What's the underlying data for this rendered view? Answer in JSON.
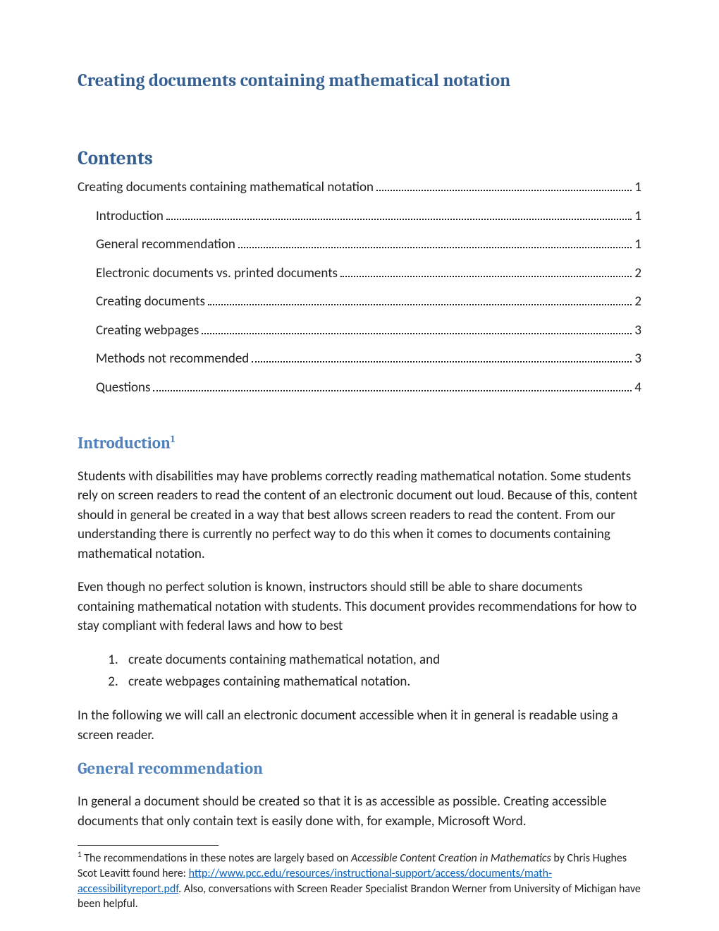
{
  "title": "Creating documents containing mathematical notation",
  "contents_heading": "Contents",
  "toc": [
    {
      "label": "Creating documents containing mathematical notation",
      "page": "1",
      "indent": false
    },
    {
      "label": "Introduction",
      "page": "1",
      "indent": true
    },
    {
      "label": "General recommendation",
      "page": "1",
      "indent": true
    },
    {
      "label": "Electronic documents vs. printed documents",
      "page": "2",
      "indent": true
    },
    {
      "label": "Creating documents",
      "page": "2",
      "indent": true
    },
    {
      "label": "Creating webpages",
      "page": "3",
      "indent": true
    },
    {
      "label": "Methods not recommended",
      "page": "3",
      "indent": true
    },
    {
      "label": "Questions",
      "page": "4",
      "indent": true
    }
  ],
  "intro_heading": "Introduction",
  "intro_sup": "1",
  "intro_p1": "Students with disabilities may have problems correctly reading mathematical notation. Some students rely on screen readers to read the content of an electronic document out loud. Because of this, content should in general be created in a way that best allows screen readers to read the content. From our understanding there is currently no perfect way to do this when it comes to documents containing mathematical notation.",
  "intro_p2": "Even though no perfect solution is known, instructors should still be able to share documents containing mathematical notation with students. This document provides recommendations for how to stay compliant with federal laws and how to best",
  "intro_list": [
    "create documents containing mathematical notation, and",
    "create webpages containing mathematical notation."
  ],
  "intro_p3": "In the following we will call an electronic document accessible when it in general is readable using a screen reader.",
  "general_heading": "General recommendation",
  "general_p1": "In general a document should be created so that it is as accessible as possible. Creating accessible documents that only contain text is easily done with, for example, Microsoft Word.",
  "footnote": {
    "sup": "1",
    "pre": " The recommendations in these notes are largely based on ",
    "italic": "Accessible Content Creation in Mathematics",
    "mid": " by Chris Hughes Scot Leavitt found here: ",
    "link_text": "http://www.pcc.edu/resources/instructional-support/access/documents/math-accessibilityreport.pdf",
    "post": ". Also, conversations with Screen Reader Specialist Brandon Werner from University of Michigan have been helpful."
  },
  "colors": {
    "h1": "#365f91",
    "h2": "#4f81bd",
    "link": "#0563c1",
    "text": "#222222",
    "background": "#ffffff"
  }
}
